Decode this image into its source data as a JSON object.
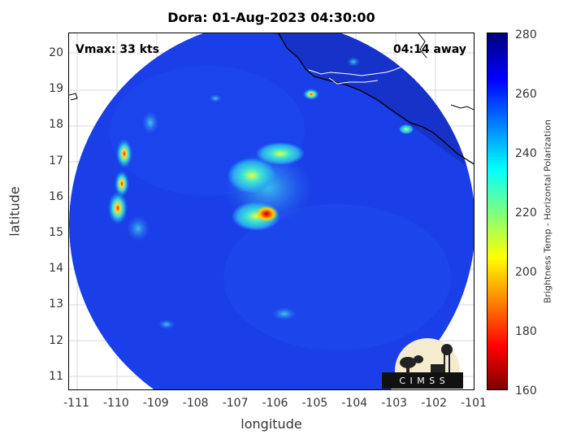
{
  "title": "Dora: 01-Aug-2023 04:30:00",
  "vmax_text": "Vmax: 33 kts",
  "away_text": "04:14 away",
  "xlabel": "longitude",
  "ylabel": "latitude",
  "x_ticks": [
    "-111",
    "-110",
    "-109",
    "-108",
    "-107",
    "-106",
    "-105",
    "-104",
    "-103",
    "-102",
    "-101"
  ],
  "y_ticks": [
    "20",
    "19",
    "18",
    "17",
    "16",
    "15",
    "14",
    "13",
    "12",
    "11"
  ],
  "colorbar": {
    "label": "Brightness Temp - Horizontal Polarization",
    "ticks": [
      "280",
      "260",
      "240",
      "220",
      "200",
      "180",
      "160"
    ],
    "range": [
      160,
      280
    ],
    "colormap": "jet"
  },
  "logo_text": "C I M S S",
  "map": {
    "lon_range": [
      -111.2,
      -100.9
    ],
    "lat_range": [
      10.6,
      20.6
    ],
    "swath_color": "#1a3fe8",
    "storm_center": {
      "lon": -106.0,
      "lat": 15.6
    }
  }
}
